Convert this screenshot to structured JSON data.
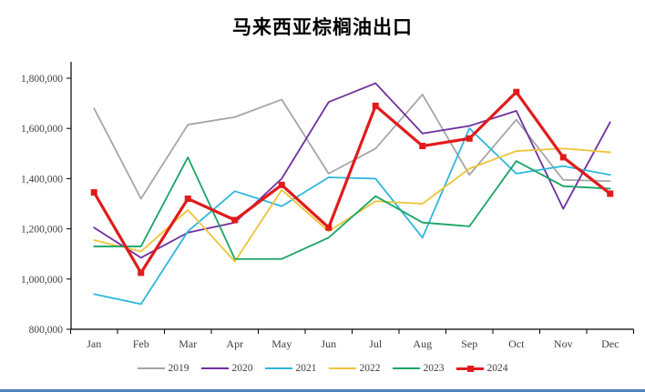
{
  "title": "马来西亚棕榈油出口",
  "chart_data": {
    "type": "line",
    "title": "马来西亚棕榈油出口",
    "categories": [
      "Jan",
      "Feb",
      "Mar",
      "Apr",
      "May",
      "Jun",
      "Jul",
      "Aug",
      "Sep",
      "Oct",
      "Nov",
      "Dec"
    ],
    "series": [
      {
        "name": "2019",
        "color": "#a6a6a6",
        "line_width": 1.8,
        "marker": "none",
        "values": [
          1680000,
          1320000,
          1615000,
          1645000,
          1715000,
          1420000,
          1520000,
          1735000,
          1415000,
          1635000,
          1395000,
          1390000
        ]
      },
      {
        "name": "2020",
        "color": "#7030a0",
        "line_width": 1.8,
        "marker": "none",
        "values": [
          1205000,
          1085000,
          1185000,
          1225000,
          1400000,
          1705000,
          1780000,
          1580000,
          1610000,
          1670000,
          1280000,
          1625000
        ]
      },
      {
        "name": "2021",
        "color": "#2fb6dc",
        "line_width": 1.8,
        "marker": "none",
        "values": [
          940000,
          900000,
          1190000,
          1350000,
          1290000,
          1405000,
          1400000,
          1165000,
          1600000,
          1420000,
          1450000,
          1415000
        ]
      },
      {
        "name": "2022",
        "color": "#eec437",
        "line_width": 1.8,
        "marker": "none",
        "values": [
          1155000,
          1110000,
          1275000,
          1070000,
          1355000,
          1190000,
          1310000,
          1300000,
          1440000,
          1510000,
          1520000,
          1505000
        ]
      },
      {
        "name": "2023",
        "color": "#18a564",
        "line_width": 1.8,
        "marker": "none",
        "values": [
          1130000,
          1130000,
          1485000,
          1080000,
          1080000,
          1165000,
          1330000,
          1225000,
          1210000,
          1470000,
          1370000,
          1360000
        ]
      },
      {
        "name": "2024",
        "color": "#e11b1b",
        "line_width": 3.2,
        "marker": "square",
        "values": [
          1345000,
          1025000,
          1320000,
          1235000,
          1375000,
          1205000,
          1690000,
          1530000,
          1560000,
          1745000,
          1485000,
          1340000
        ]
      }
    ],
    "ylim": [
      800000,
      1800000
    ],
    "y_tick_step": 200000,
    "y_tick_labels": [
      "800,000",
      "1,000,000",
      "1,200,000",
      "1,400,000",
      "1,600,000",
      "1,800,000"
    ],
    "grid": false,
    "legend_position": "bottom"
  },
  "bottom_rule_color": "#4f81bd"
}
